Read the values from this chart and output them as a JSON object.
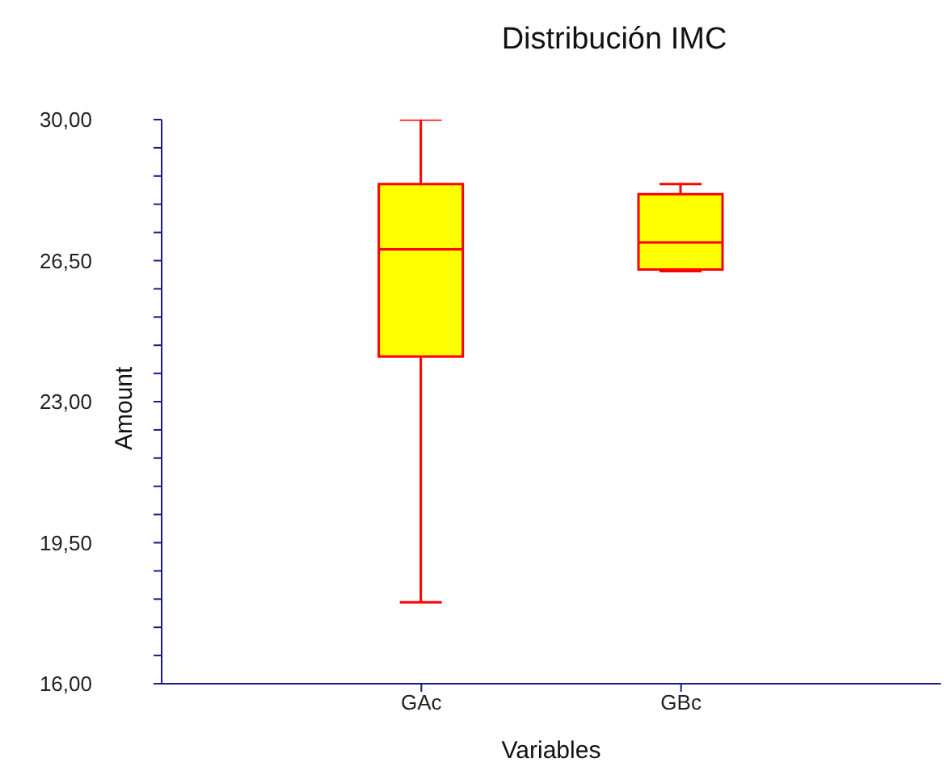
{
  "chart_data": {
    "type": "box",
    "title": "Distribución IMC",
    "xlabel": "Variables",
    "ylabel": "Amount",
    "categories": [
      "GAc",
      "GBc"
    ],
    "series": [
      {
        "color": "#ff0000",
        "boxes": [
          {
            "low": 18.02,
            "q1": 24.12,
            "median": 26.78,
            "q3": 28.4,
            "high": 30
          },
          {
            "low": 26.24,
            "q1": 26.28,
            "median": 26.95,
            "q3": 28.15,
            "high": 28.4
          }
        ]
      }
    ],
    "ylim": [
      16,
      30
    ],
    "yticks": [
      {
        "value": 16,
        "label": "16,00"
      },
      {
        "value": 16.7,
        "label": null
      },
      {
        "value": 17.4,
        "label": null
      },
      {
        "value": 18.1,
        "label": null
      },
      {
        "value": 18.8,
        "label": null
      },
      {
        "value": 19.5,
        "label": "19,50"
      },
      {
        "value": 20.2,
        "label": null
      },
      {
        "value": 20.9,
        "label": null
      },
      {
        "value": 21.6,
        "label": null
      },
      {
        "value": 22.3,
        "label": null
      },
      {
        "value": 23,
        "label": "23,00"
      },
      {
        "value": 23.7,
        "label": null
      },
      {
        "value": 24.4,
        "label": null
      },
      {
        "value": 25.1,
        "label": null
      },
      {
        "value": 25.8,
        "label": null
      },
      {
        "value": 26.5,
        "label": "26,50"
      },
      {
        "value": 27.2,
        "label": null
      },
      {
        "value": 27.9,
        "label": null
      },
      {
        "value": 28.6,
        "label": null
      },
      {
        "value": 29.3,
        "label": null
      },
      {
        "value": 30,
        "label": "30,00"
      }
    ],
    "grid": false,
    "legend": false
  }
}
